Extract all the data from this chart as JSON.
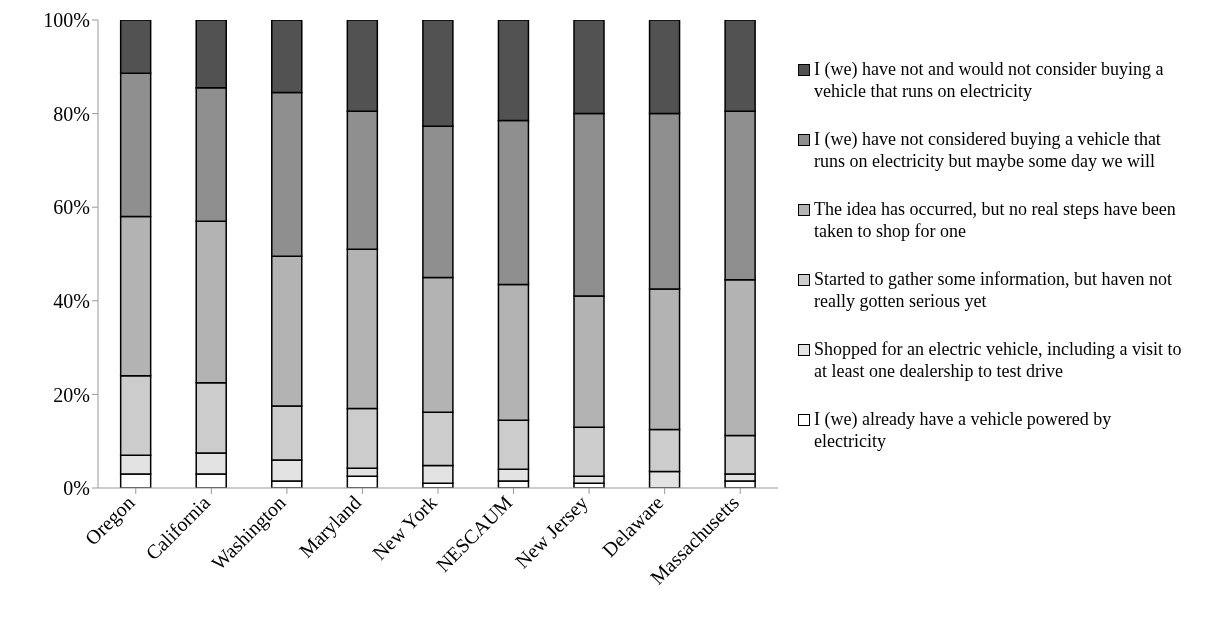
{
  "chart_data": {
    "type": "bar",
    "stacked": true,
    "categories": [
      "Oregon",
      "California",
      "Washington",
      "Maryland",
      "New York",
      "NESCAUM",
      "New Jersey",
      "Delaware",
      "Massachusetts"
    ],
    "ylim": [
      0,
      100
    ],
    "yticks": [
      {
        "value": 0,
        "label": "0%"
      },
      {
        "value": 20,
        "label": "20%"
      },
      {
        "value": 40,
        "label": "40%"
      },
      {
        "value": 60,
        "label": "60%"
      },
      {
        "value": 80,
        "label": "80%"
      },
      {
        "value": 100,
        "label": "100%"
      }
    ],
    "grid": false,
    "legend": "right",
    "series": [
      {
        "name": "I (we) already have a vehicle powered by electricity",
        "color": "#ffffff",
        "values": [
          3,
          3,
          1.5,
          2.5,
          1,
          1.5,
          1,
          null,
          1.5
        ]
      },
      {
        "name": "Shopped for an electric vehicle, including a visit to at least one dealership to test drive",
        "color": "#e3e3e3",
        "values": [
          4,
          4.5,
          4.5,
          1.7,
          3.8,
          2.5,
          1.5,
          3.5,
          1.5
        ]
      },
      {
        "name": "Started to gather some information, but haven not really gotten serious yet",
        "color": "#cccccc",
        "values": [
          17,
          15,
          11.5,
          12.8,
          11.4,
          10.5,
          10.5,
          9,
          8.2
        ]
      },
      {
        "name": "The idea has occurred, but no real steps have been taken to shop for one",
        "color": "#b3b3b3",
        "values": [
          34,
          34.5,
          32,
          34,
          28.8,
          29,
          28,
          30,
          33.3
        ]
      },
      {
        "name": "I (we) have not considered buying a vehicle that runs on electricity but maybe some day we will",
        "color": "#8f8f8f",
        "values": [
          30.6,
          28.5,
          35,
          29.5,
          32.3,
          35,
          39,
          37.5,
          36
        ]
      },
      {
        "name": "I (we) have not and would not consider buying a vehicle that runs on electricity",
        "color": "#525252",
        "values": [
          11.4,
          14.5,
          15.5,
          19.5,
          22.7,
          21.5,
          20,
          20,
          19.5
        ]
      }
    ]
  }
}
